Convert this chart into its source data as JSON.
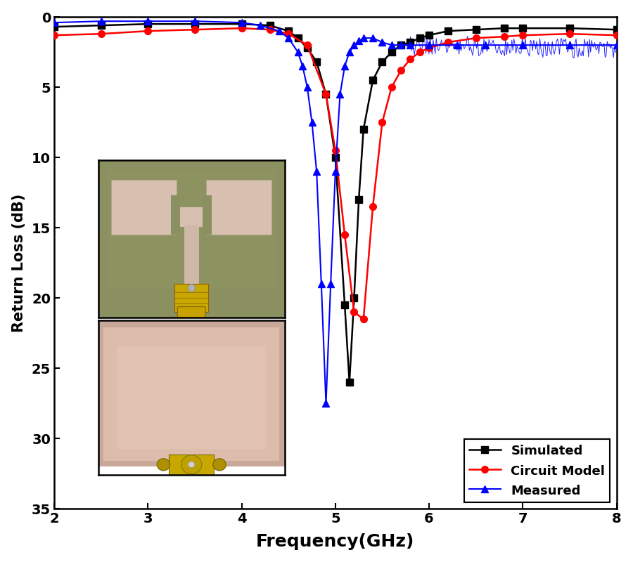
{
  "xlabel": "Frequency(GHz)",
  "ylabel": "Return Loss (dB)",
  "xlim": [
    2,
    8
  ],
  "ylim_bottom": 35,
  "ylim_top": 0,
  "yticks": [
    0,
    5,
    10,
    15,
    20,
    25,
    30,
    35
  ],
  "xticks": [
    2,
    3,
    4,
    5,
    6,
    7,
    8
  ],
  "legend_labels": [
    "Simulated",
    "Circuit Model",
    "Measured"
  ],
  "background_color": "#ffffff",
  "simulated_x": [
    2.0,
    2.5,
    3.0,
    3.5,
    4.0,
    4.3,
    4.5,
    4.6,
    4.7,
    4.8,
    4.9,
    5.0,
    5.1,
    5.15,
    5.2,
    5.25,
    5.3,
    5.4,
    5.5,
    5.6,
    5.7,
    5.8,
    5.9,
    6.0,
    6.2,
    6.5,
    6.8,
    7.0,
    7.5,
    8.0
  ],
  "simulated_y": [
    0.7,
    0.6,
    0.5,
    0.5,
    0.5,
    0.6,
    1.0,
    1.5,
    2.2,
    3.2,
    5.5,
    10.0,
    20.5,
    26.0,
    20.0,
    13.0,
    8.0,
    4.5,
    3.2,
    2.5,
    2.0,
    1.8,
    1.5,
    1.3,
    1.0,
    0.9,
    0.8,
    0.8,
    0.8,
    0.9
  ],
  "circuit_x": [
    2.0,
    2.5,
    3.0,
    3.5,
    4.0,
    4.3,
    4.5,
    4.7,
    4.9,
    5.0,
    5.1,
    5.2,
    5.3,
    5.4,
    5.5,
    5.6,
    5.7,
    5.8,
    5.9,
    6.0,
    6.2,
    6.5,
    6.8,
    7.0,
    7.5,
    8.0
  ],
  "circuit_y": [
    1.3,
    1.2,
    1.0,
    0.9,
    0.8,
    0.9,
    1.2,
    2.0,
    5.5,
    9.5,
    15.5,
    21.0,
    21.5,
    13.5,
    7.5,
    5.0,
    3.8,
    3.0,
    2.5,
    2.2,
    1.8,
    1.5,
    1.4,
    1.3,
    1.2,
    1.3
  ],
  "measured_x": [
    2.0,
    2.5,
    3.0,
    3.5,
    4.0,
    4.2,
    4.4,
    4.5,
    4.6,
    4.65,
    4.7,
    4.75,
    4.8,
    4.85,
    4.9,
    4.95,
    5.0,
    5.05,
    5.1,
    5.15,
    5.2,
    5.25,
    5.3,
    5.4,
    5.5,
    5.6,
    5.7,
    5.8,
    6.0,
    6.3,
    6.6,
    7.0,
    7.5,
    8.0
  ],
  "measured_y": [
    0.4,
    0.3,
    0.3,
    0.3,
    0.4,
    0.6,
    1.0,
    1.5,
    2.5,
    3.5,
    5.0,
    7.5,
    11.0,
    19.0,
    27.5,
    19.0,
    11.0,
    5.5,
    3.5,
    2.5,
    2.0,
    1.7,
    1.5,
    1.5,
    1.8,
    2.0,
    2.0,
    2.0,
    2.0,
    2.0,
    2.0,
    2.0,
    2.0,
    2.0
  ]
}
